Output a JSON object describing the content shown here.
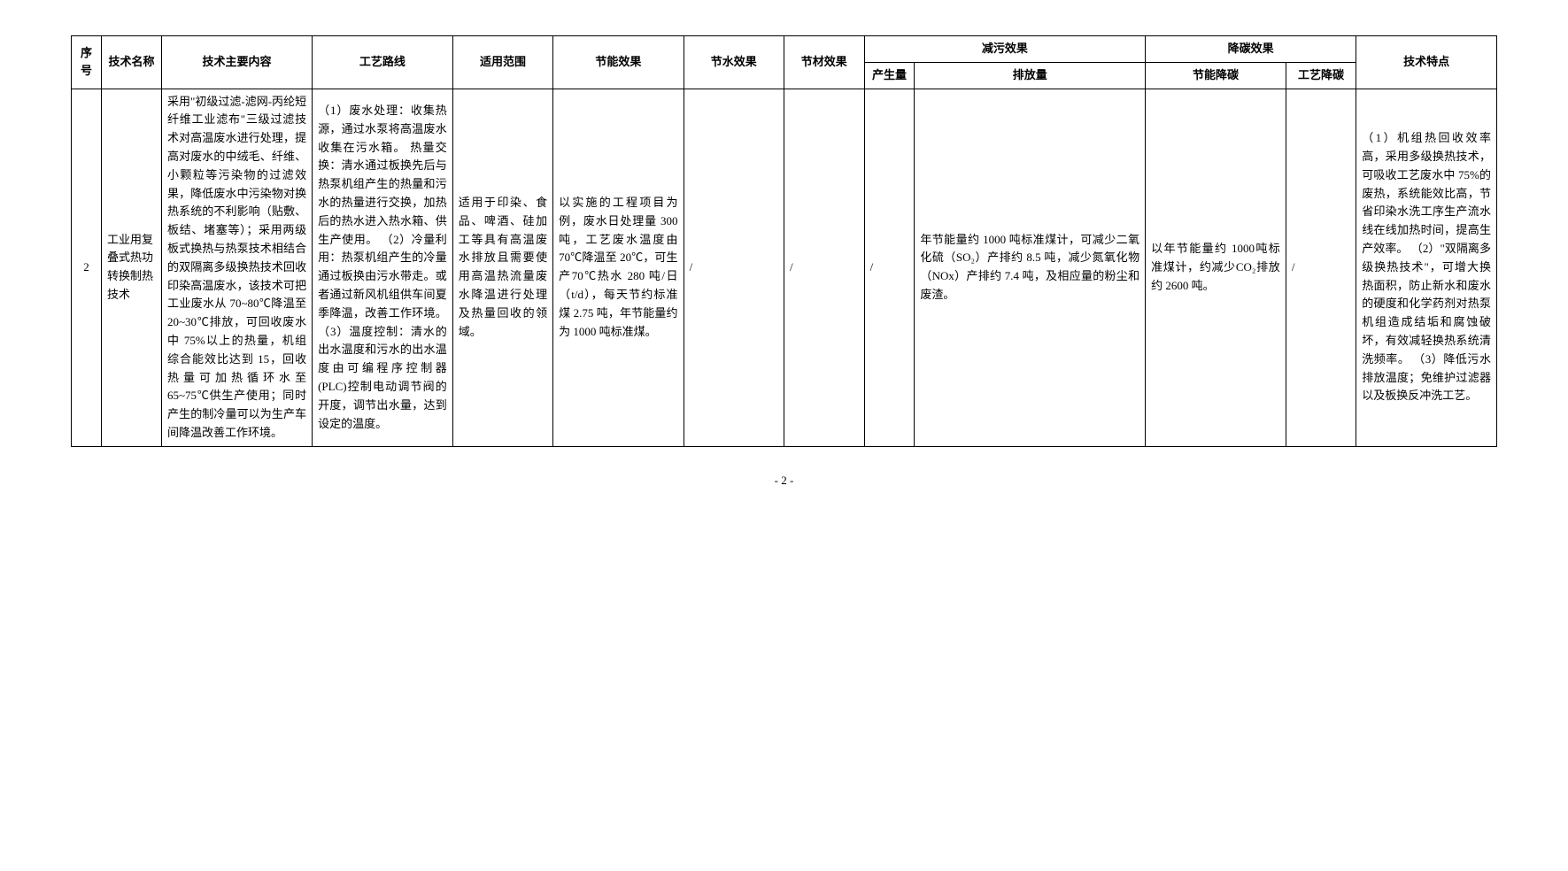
{
  "headers": {
    "seq": "序号",
    "name": "技术名称",
    "content": "技术主要内容",
    "route": "工艺路线",
    "scope": "适用范围",
    "energy": "节能效果",
    "water": "节水效果",
    "material": "节材效果",
    "pollution": "减污效果",
    "pollution_gen": "产生量",
    "pollution_emit": "排放量",
    "carbon": "降碳效果",
    "carbon_energy": "节能降碳",
    "carbon_process": "工艺降碳",
    "feature": "技术特点"
  },
  "row": {
    "seq": "2",
    "name": "工业用复叠式热功转换制热技术",
    "content": "采用\"初级过滤-滤网-丙纶短纤维工业滤布\"三级过滤技术对高温废水进行处理，提高对废水的中绒毛、纤维、小颗粒等污染物的过滤效果，降低废水中污染物对换热系统的不利影响（贴敷、板结、堵塞等）；采用两级板式换热与热泵技术相结合的双隔离多级换热技术回收印染高温废水，该技术可把工业废水从 70~80℃降温至 20~30℃排放，可回收废水中 75%以上的热量，机组综合能效比达到 15，回收热量可加热循环水至65~75℃供生产使用；同时产生的制冷量可以为生产车间降温改善工作环境。",
    "route": "（1）废水处理：收集热源，通过水泵将高温废水收集在污水箱。\n热量交换：清水通过板换先后与热泵机组产生的热量和污水的热量进行交换，加热后的热水进入热水箱、供生产使用。\n（2）冷量利用：热泵机组产生的冷量通过板换由污水带走。或者通过新风机组供车间夏季降温，改善工作环境。\n（3）温度控制：清水的出水温度和污水的出水温度由可编程序控制器(PLC)控制电动调节阀的开度，调节出水量，达到设定的温度。",
    "scope": "适用于印染、食品、啤酒、硅加工等具有高温废水排放且需要使用高温热流量废水降温进行处理及热量回收的领域。",
    "energy": "以实施的工程项目为例，废水日处理量 300 吨，工艺废水温度由 70℃降温至 20℃，可生产70℃热水 280 吨/日（t/d），每天节约标准煤 2.75 吨，年节能量约为 1000 吨标准煤。",
    "water": "/",
    "material": "/",
    "pollution_gen": "/",
    "pollution_emit": "年节能量约 1000 吨标准煤计，可减少二氧化硫（SO₂）产排约 8.5 吨，减少氮氧化物（NOx）产排约 7.4 吨，及相应量的粉尘和废渣。",
    "carbon_energy": "以年节能量约 1000吨标准煤计，约减少CO₂排放约 2600 吨。",
    "carbon_process": "/",
    "feature": "（1）机组热回收效率高，采用多级换热技术，可吸收工艺废水中 75%的废热，系统能效比高，节省印染水洗工序生产流水线在线加热时间，提高生产效率。\n（2）\"双隔离多级换热技术\"，可增大换热面积，防止新水和废水的硬度和化学药剂对热泵机组造成结垢和腐蚀破坏，有效减轻换热系统清洗频率。\n（3）降低污水排放温度；免维护过滤器以及板换反冲洗工艺。"
  },
  "page_number": "- 2 -"
}
